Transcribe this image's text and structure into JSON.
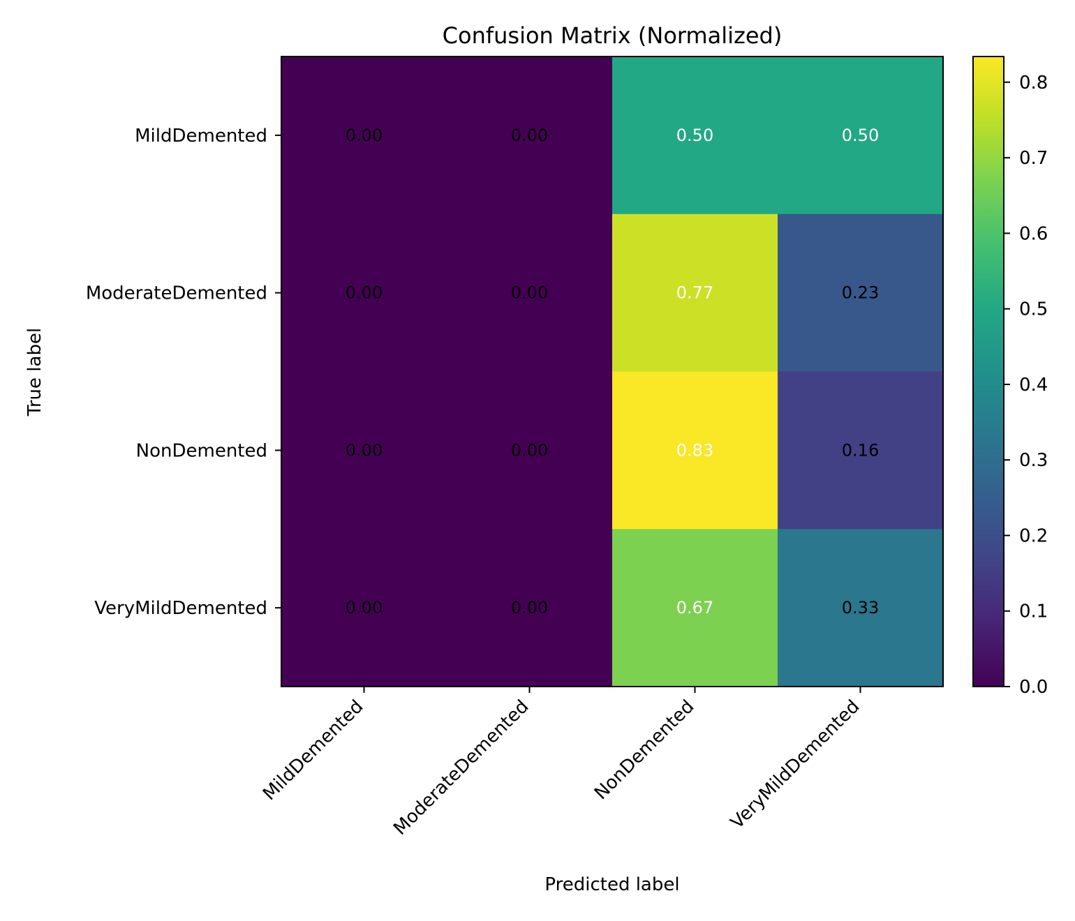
{
  "chart_data": {
    "type": "heatmap",
    "title": "Confusion Matrix (Normalized)",
    "xlabel": "Predicted label",
    "ylabel": "True label",
    "x_categories": [
      "MildDemented",
      "ModerateDemented",
      "NonDemented",
      "VeryMildDemented"
    ],
    "y_categories": [
      "MildDemented",
      "ModerateDemented",
      "NonDemented",
      "VeryMildDemented"
    ],
    "values": [
      [
        0.0,
        0.0,
        0.5,
        0.5
      ],
      [
        0.0,
        0.0,
        0.77,
        0.23
      ],
      [
        0.0,
        0.0,
        0.83,
        0.16
      ],
      [
        0.0,
        0.0,
        0.67,
        0.33
      ]
    ],
    "value_labels": [
      [
        "0.00",
        "0.00",
        "0.50",
        "0.50"
      ],
      [
        "0.00",
        "0.00",
        "0.77",
        "0.23"
      ],
      [
        "0.00",
        "0.00",
        "0.83",
        "0.16"
      ],
      [
        "0.00",
        "0.00",
        "0.67",
        "0.33"
      ]
    ],
    "colormap": "viridis",
    "vmin": 0.0,
    "vmax": 0.834,
    "colorbar_ticks": [
      "0.0",
      "0.1",
      "0.2",
      "0.3",
      "0.4",
      "0.5",
      "0.6",
      "0.7",
      "0.8"
    ],
    "colorbar_tick_values": [
      0.0,
      0.1,
      0.2,
      0.3,
      0.4,
      0.5,
      0.6,
      0.7,
      0.8
    ],
    "label_colors": {
      "dark": "#000000",
      "light": "#ffffff"
    },
    "grid": false
  }
}
